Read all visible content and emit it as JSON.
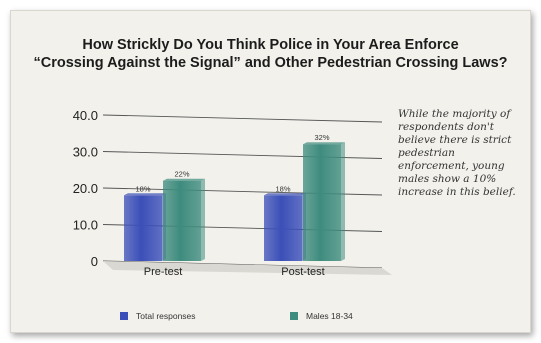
{
  "colors": {
    "total": "#3b4fb8",
    "males": "#3e8c7e"
  },
  "chart_data": {
    "type": "bar",
    "title_line1": "How Strickly Do You Think Police in Your Area Enforce",
    "title_line2": "“Crossing Against the Signal” and Other Pedestrian Crossing Laws?",
    "categories": [
      "Pre-test",
      "Post-test"
    ],
    "series": [
      {
        "name": "Total responses",
        "values": [
          18,
          18
        ],
        "labels": [
          "18%",
          "18%"
        ]
      },
      {
        "name": "Males 18-34",
        "values": [
          22,
          32
        ],
        "labels": [
          "22%",
          "32%"
        ]
      }
    ],
    "ylim": [
      0,
      40
    ],
    "yticks": [
      "0",
      "10.0",
      "20.0",
      "30.0",
      "40.0"
    ],
    "ytick_values": [
      0,
      10,
      20,
      30,
      40
    ],
    "legend_position": "bottom",
    "grid": true,
    "annotation": "While the majority of respondents don't believe there is strict pedestrian enforcement, young males show a 10% increase in this belief."
  }
}
